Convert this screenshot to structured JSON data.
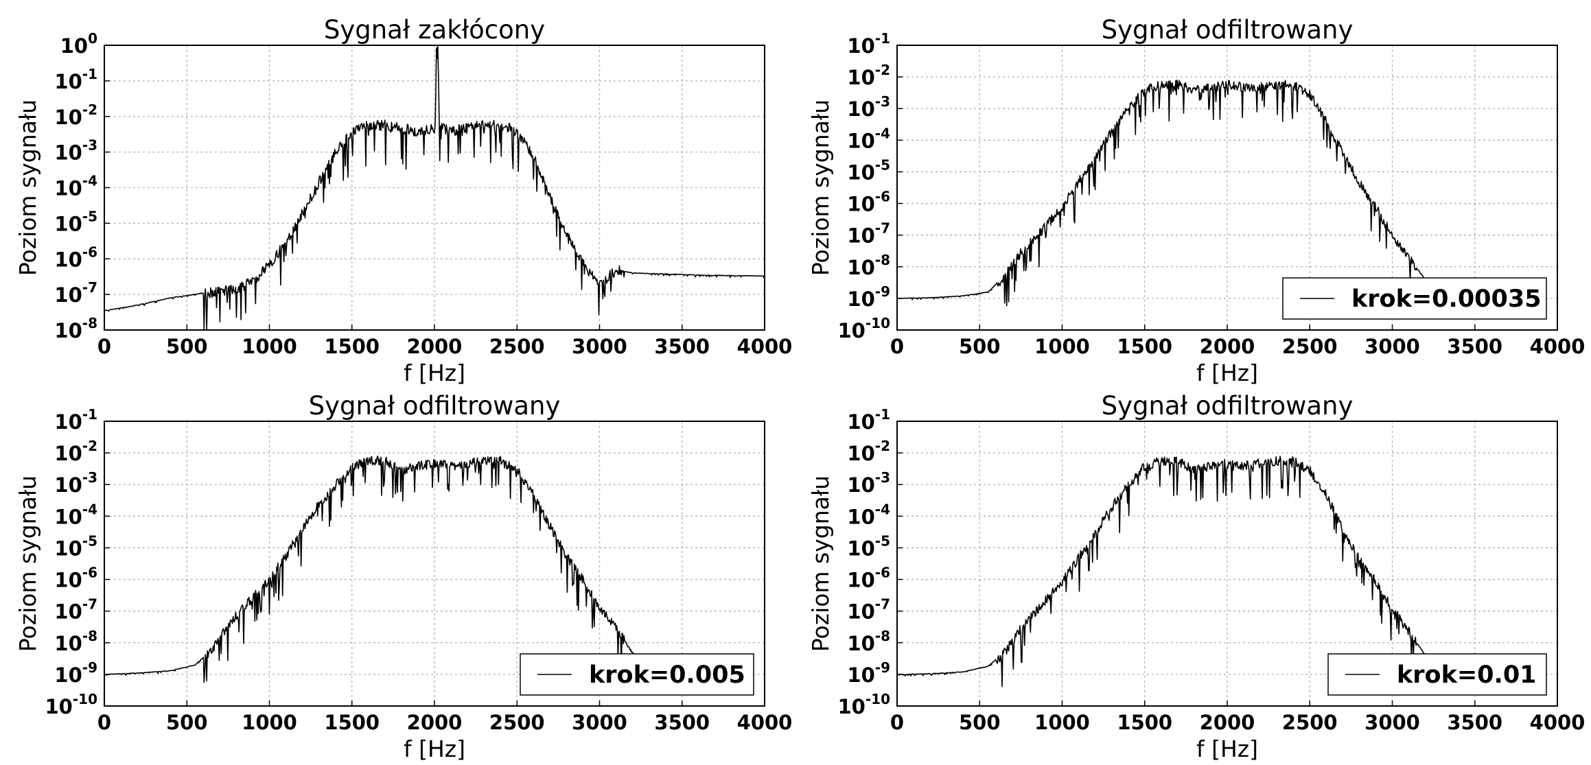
{
  "chart_data": [
    {
      "type": "line",
      "title": "Sygnał zakłócony",
      "xlabel": "f [Hz]",
      "ylabel": "Poziom sygnału",
      "xlim": [
        0,
        4000
      ],
      "ylim": [
        1e-08,
        1
      ],
      "yscale": "log",
      "grid": true,
      "x_ticks": [
        "0",
        "500",
        "1000",
        "1500",
        "2000",
        "2500",
        "3000",
        "3500",
        "4000"
      ],
      "y_ticks": [
        "-8",
        "-7",
        "-6",
        "-5",
        "-4",
        "-3",
        "-2",
        "-1",
        "0"
      ],
      "legend": null,
      "series": [
        {
          "x": [
            0,
            200,
            400,
            600,
            800,
            900,
            1000,
            1100,
            1200,
            1300,
            1400,
            1500,
            1600,
            1700,
            1800,
            1900,
            2000,
            2010,
            2020,
            2030,
            2040,
            2100,
            2200,
            2300,
            2400,
            2500,
            2600,
            2700,
            2800,
            2900,
            3000,
            3100,
            3200,
            3400,
            3600,
            4000
          ],
          "y": [
            3.5e-08,
            5e-08,
            8e-08,
            1.1e-07,
            1.5e-07,
            2.5e-07,
            7e-07,
            3e-06,
            2e-05,
            0.00015,
            0.001,
            0.004,
            0.006,
            0.006,
            0.005,
            0.004,
            0.005,
            0.6,
            0.9,
            0.006,
            0.005,
            0.004,
            0.005,
            0.006,
            0.006,
            0.004,
            0.0008,
            6e-05,
            5e-06,
            8e-07,
            2e-07,
            5e-07,
            4e-07,
            3.8e-07,
            3.5e-07,
            3.3e-07
          ]
        }
      ]
    },
    {
      "type": "line",
      "title": "Sygnał odfiltrowany",
      "xlabel": "f [Hz]",
      "ylabel": "Poziom sygnału",
      "xlim": [
        0,
        4000
      ],
      "ylim": [
        1e-10,
        0.1
      ],
      "yscale": "log",
      "grid": true,
      "x_ticks": [
        "0",
        "500",
        "1000",
        "1500",
        "2000",
        "2500",
        "3000",
        "3500",
        "4000"
      ],
      "y_ticks": [
        "-10",
        "-9",
        "-8",
        "-7",
        "-6",
        "-5",
        "-4",
        "-3",
        "-2",
        "-1"
      ],
      "legend": {
        "label": "krok=0.00035",
        "loc": "lower right"
      },
      "series": [
        {
          "x": [
            0,
            200,
            400,
            550,
            650,
            750,
            850,
            1000,
            1100,
            1200,
            1300,
            1400,
            1500,
            1600,
            1700,
            1800,
            1900,
            2000,
            2100,
            2200,
            2300,
            2400,
            2500,
            2600,
            2700,
            2800,
            2900,
            3000,
            3100,
            3200,
            3300
          ],
          "y": [
            1e-09,
            1.05e-09,
            1.2e-09,
            1.6e-09,
            5e-09,
            3e-08,
            1e-07,
            8e-07,
            5e-06,
            3e-05,
            0.0002,
            0.001,
            0.004,
            0.006,
            0.006,
            0.004,
            0.005,
            0.006,
            0.005,
            0.005,
            0.006,
            0.006,
            0.003,
            0.0004,
            4e-05,
            5e-06,
            8e-07,
            1e-07,
            2e-08,
            4e-09,
            1e-09
          ]
        }
      ]
    },
    {
      "type": "line",
      "title": "Sygnał odfiltrowany",
      "xlabel": "f [Hz]",
      "ylabel": "Poziom sygnału",
      "xlim": [
        0,
        4000
      ],
      "ylim": [
        1e-10,
        0.1
      ],
      "yscale": "log",
      "grid": true,
      "x_ticks": [
        "0",
        "500",
        "1000",
        "1500",
        "2000",
        "2500",
        "3000",
        "3500",
        "4000"
      ],
      "y_ticks": [
        "-10",
        "-9",
        "-8",
        "-7",
        "-6",
        "-5",
        "-4",
        "-3",
        "-2",
        "-1"
      ],
      "legend": {
        "label": "krok=0.005",
        "loc": "lower right"
      },
      "series": [
        {
          "x": [
            0,
            200,
            400,
            550,
            650,
            750,
            850,
            1000,
            1100,
            1200,
            1300,
            1400,
            1500,
            1600,
            1700,
            1800,
            1900,
            2000,
            2100,
            2200,
            2300,
            2400,
            2500,
            2600,
            2700,
            2800,
            2900,
            3000,
            3100,
            3200,
            3300
          ],
          "y": [
            1e-09,
            1.1e-09,
            1.3e-09,
            2e-09,
            6e-09,
            4e-08,
            1.5e-07,
            1e-06,
            6e-06,
            4e-05,
            0.00025,
            0.001,
            0.004,
            0.006,
            0.006,
            0.003,
            0.004,
            0.005,
            0.004,
            0.005,
            0.006,
            0.006,
            0.003,
            0.0005,
            5e-05,
            6e-06,
            1e-06,
            1.5e-07,
            3e-08,
            5e-09,
            1.2e-09
          ]
        }
      ]
    },
    {
      "type": "line",
      "title": "Sygnał odfiltrowany",
      "xlabel": "f [Hz]",
      "ylabel": "Poziom sygnału",
      "xlim": [
        0,
        4000
      ],
      "ylim": [
        1e-10,
        0.1
      ],
      "yscale": "log",
      "grid": true,
      "x_ticks": [
        "0",
        "500",
        "1000",
        "1500",
        "2000",
        "2500",
        "3000",
        "3500",
        "4000"
      ],
      "y_ticks": [
        "-10",
        "-9",
        "-8",
        "-7",
        "-6",
        "-5",
        "-4",
        "-3",
        "-2",
        "-1"
      ],
      "legend": {
        "label": "krok=0.01",
        "loc": "lower right"
      },
      "series": [
        {
          "x": [
            0,
            200,
            400,
            550,
            650,
            750,
            850,
            1000,
            1100,
            1200,
            1300,
            1400,
            1500,
            1600,
            1700,
            1800,
            1900,
            2000,
            2100,
            2200,
            2300,
            2400,
            2500,
            2600,
            2700,
            2800,
            2900,
            3000,
            3100,
            3200,
            3300
          ],
          "y": [
            1e-09,
            1.05e-09,
            1.2e-09,
            1.8e-09,
            5e-09,
            3e-08,
            1.2e-07,
            9e-07,
            5e-06,
            3e-05,
            0.0002,
            0.001,
            0.004,
            0.006,
            0.006,
            0.003,
            0.004,
            0.005,
            0.004,
            0.005,
            0.006,
            0.006,
            0.003,
            0.0005,
            4e-05,
            5e-06,
            9e-07,
            1.2e-07,
            2.5e-08,
            4e-09,
            1e-09
          ]
        }
      ]
    }
  ]
}
